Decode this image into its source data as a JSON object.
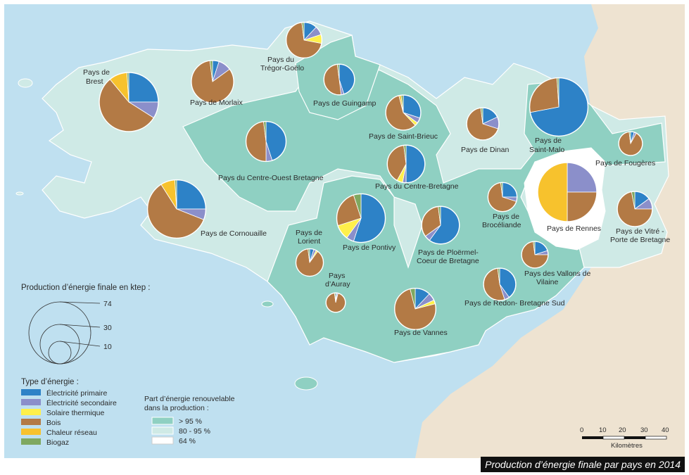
{
  "caption": "Production d’énergie finale par pays en 2014",
  "colors": {
    "sea": "#bfe0f0",
    "land_outside": "#eee3d1",
    "share_high": "#8fd0c2",
    "share_mid": "#cfeae6",
    "share_low": "#ffffff",
    "electricite_primaire": "#2d82c7",
    "electricite_secondaire": "#8b8fca",
    "solaire_thermique": "#fff04a",
    "bois": "#b37a45",
    "chaleur_reseau": "#f7c22d",
    "biogaz": "#7fa860"
  },
  "size_legend": {
    "title": "Production d’énergie finale en ktep :",
    "values": [
      "74",
      "30",
      "10"
    ]
  },
  "type_legend": {
    "title": "Type d’énergie :",
    "items": [
      {
        "label": "Électricité primaire",
        "color": "#2d82c7"
      },
      {
        "label": "Électricité secondaire",
        "color": "#8b8fca"
      },
      {
        "label": "Solaire thermique",
        "color": "#fff04a"
      },
      {
        "label": "Bois",
        "color": "#b37a45"
      },
      {
        "label": "Chaleur réseau",
        "color": "#f7c22d"
      },
      {
        "label": "Biogaz",
        "color": "#7fa860"
      }
    ]
  },
  "share_legend": {
    "title_line1": "Part d’énergie renouvelable",
    "title_line2": "dans la production :",
    "items": [
      {
        "label": "> 95 %",
        "color": "#8fd0c2"
      },
      {
        "label": "80 - 95 %",
        "color": "#cfeae6"
      },
      {
        "label": "64 %",
        "color": "#ffffff"
      }
    ]
  },
  "scale_bar": {
    "ticks": [
      "0",
      "10",
      "20",
      "30",
      "40"
    ],
    "unit": "Kilomètres"
  },
  "pays": [
    {
      "name": "Pays de Brest",
      "share": "80 - 95 %",
      "ktep": 74,
      "mix": {
        "electricite_primaire": 0.25,
        "electricite_secondaire": 0.09,
        "solaire_thermique": 0.0,
        "bois": 0.55,
        "chaleur_reseau": 0.1,
        "biogaz": 0.01
      }
    },
    {
      "name": "Pays de Morlaix",
      "share": "80 - 95 %",
      "ktep": 38,
      "mix": {
        "electricite_primaire": 0.05,
        "electricite_secondaire": 0.1,
        "solaire_thermique": 0.0,
        "bois": 0.83,
        "chaleur_reseau": 0.0,
        "biogaz": 0.02
      }
    },
    {
      "name": "Pays du Trégor-Goëlo",
      "share": "80 - 95 %",
      "ktep": 27,
      "mix": {
        "electricite_primaire": 0.12,
        "electricite_secondaire": 0.08,
        "solaire_thermique": 0.08,
        "bois": 0.7,
        "chaleur_reseau": 0.0,
        "biogaz": 0.02
      }
    },
    {
      "name": "Pays de Guingamp",
      "share": "> 95 %",
      "ktep": 20,
      "mix": {
        "electricite_primaire": 0.45,
        "electricite_secondaire": 0.03,
        "solaire_thermique": 0.0,
        "bois": 0.5,
        "chaleur_reseau": 0.0,
        "biogaz": 0.02
      }
    },
    {
      "name": "Pays de Saint-Brieuc",
      "share": "> 95 %",
      "ktep": 26,
      "mix": {
        "electricite_primaire": 0.3,
        "electricite_secondaire": 0.05,
        "solaire_thermique": 0.03,
        "bois": 0.58,
        "chaleur_reseau": 0.02,
        "biogaz": 0.02
      }
    },
    {
      "name": "Pays de Dinan",
      "share": "80 - 95 %",
      "ktep": 22,
      "mix": {
        "electricite_primaire": 0.18,
        "electricite_secondaire": 0.12,
        "solaire_thermique": 0.0,
        "bois": 0.68,
        "chaleur_reseau": 0.0,
        "biogaz": 0.02
      }
    },
    {
      "name": "Pays de Saint-Malo",
      "share": "> 95 %",
      "ktep": 72,
      "mix": {
        "electricite_primaire": 0.72,
        "electricite_secondaire": 0.0,
        "solaire_thermique": 0.0,
        "bois": 0.27,
        "chaleur_reseau": 0.0,
        "biogaz": 0.01
      }
    },
    {
      "name": "Pays de Fougères",
      "share": "> 95 %",
      "ktep": 12,
      "mix": {
        "electricite_primaire": 0.05,
        "electricite_secondaire": 0.03,
        "solaire_thermique": 0.0,
        "bois": 0.9,
        "chaleur_reseau": 0.0,
        "biogaz": 0.02
      }
    },
    {
      "name": "Pays du Centre-Ouest Bretagne",
      "share": "> 95 %",
      "ktep": 34,
      "mix": {
        "electricite_primaire": 0.45,
        "electricite_secondaire": 0.05,
        "solaire_thermique": 0.0,
        "bois": 0.48,
        "chaleur_reseau": 0.0,
        "biogaz": 0.02
      }
    },
    {
      "name": "Pays du Centre-Bretagne",
      "share": "> 95 %",
      "ktep": 30,
      "mix": {
        "electricite_primaire": 0.5,
        "electricite_secondaire": 0.03,
        "solaire_thermique": 0.05,
        "bois": 0.4,
        "chaleur_reseau": 0.0,
        "biogaz": 0.02
      }
    },
    {
      "name": "Pays de Cornouaille",
      "share": "80 - 95 %",
      "ktep": 72,
      "mix": {
        "electricite_primaire": 0.25,
        "electricite_secondaire": 0.06,
        "solaire_thermique": 0.0,
        "bois": 0.6,
        "chaleur_reseau": 0.08,
        "biogaz": 0.01
      }
    },
    {
      "name": "Pays de Rennes",
      "share": "64 %",
      "ktep": 74,
      "mix": {
        "electricite_primaire": 0.0,
        "electricite_secondaire": 0.25,
        "solaire_thermique": 0.0,
        "bois": 0.25,
        "chaleur_reseau": 0.5,
        "biogaz": 0.0
      }
    },
    {
      "name": "Pays de Brocéliande",
      "share": "> 95 %",
      "ktep": 18,
      "mix": {
        "electricite_primaire": 0.25,
        "electricite_secondaire": 0.05,
        "solaire_thermique": 0.0,
        "bois": 0.68,
        "chaleur_reseau": 0.0,
        "biogaz": 0.02
      }
    },
    {
      "name": "Pays de Lorient",
      "share": "> 95 %",
      "ktep": 16,
      "mix": {
        "electricite_primaire": 0.05,
        "electricite_secondaire": 0.03,
        "solaire_thermique": 0.02,
        "bois": 0.88,
        "chaleur_reseau": 0.0,
        "biogaz": 0.02
      }
    },
    {
      "name": "Pays de Pontivy",
      "share": "80 - 95 %",
      "ktep": 50,
      "mix": {
        "electricite_primaire": 0.55,
        "electricite_secondaire": 0.05,
        "solaire_thermique": 0.1,
        "bois": 0.25,
        "chaleur_reseau": 0.0,
        "biogaz": 0.05
      }
    },
    {
      "name": "Pays de Ploërmel-Coeur de Bretagne",
      "share": "> 95 %",
      "ktep": 30,
      "mix": {
        "electricite_primaire": 0.6,
        "electricite_secondaire": 0.05,
        "solaire_thermique": 0.0,
        "bois": 0.33,
        "chaleur_reseau": 0.0,
        "biogaz": 0.02
      }
    },
    {
      "name": "Pays de Vitré - Porte de Bretagne",
      "share": "80 - 95 %",
      "ktep": 26,
      "mix": {
        "electricite_primaire": 0.15,
        "electricite_secondaire": 0.1,
        "solaire_thermique": 0.0,
        "bois": 0.72,
        "chaleur_reseau": 0.0,
        "biogaz": 0.03
      }
    },
    {
      "name": "Pays d’Auray",
      "share": "> 95 %",
      "ktep": 8,
      "mix": {
        "electricite_primaire": 0.02,
        "electricite_secondaire": 0.02,
        "solaire_thermique": 0.0,
        "bois": 0.94,
        "chaleur_reseau": 0.0,
        "biogaz": 0.02
      }
    },
    {
      "name": "Pays de Vannes",
      "share": "> 95 %",
      "ktep": 36,
      "mix": {
        "electricite_primaire": 0.12,
        "electricite_secondaire": 0.06,
        "solaire_thermique": 0.03,
        "bois": 0.75,
        "chaleur_reseau": 0.0,
        "biogaz": 0.04
      }
    },
    {
      "name": "Pays des Vallons de Vilaine",
      "share": "> 95 %",
      "ktep": 15,
      "mix": {
        "electricite_primaire": 0.2,
        "electricite_secondaire": 0.05,
        "solaire_thermique": 0.0,
        "bois": 0.73,
        "chaleur_reseau": 0.0,
        "biogaz": 0.02
      }
    },
    {
      "name": "Pays de Redon- Bretagne Sud",
      "share": "> 95 %",
      "ktep": 22,
      "mix": {
        "electricite_primaire": 0.4,
        "electricite_secondaire": 0.05,
        "solaire_thermique": 0.0,
        "bois": 0.53,
        "chaleur_reseau": 0.0,
        "biogaz": 0.02
      }
    }
  ]
}
